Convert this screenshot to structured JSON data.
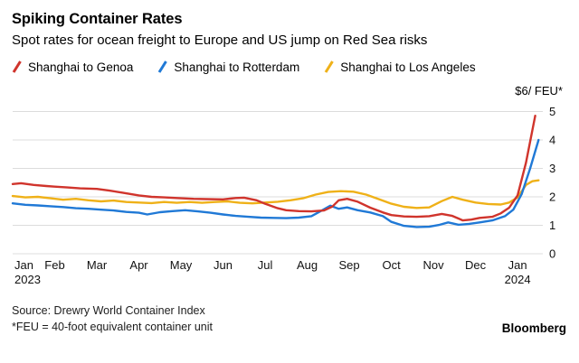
{
  "header": {
    "title": "Spiking Container Rates",
    "subtitle": "Spot rates for ocean freight to Europe and US jump on Red Sea risks"
  },
  "legend": {
    "items": [
      {
        "label": "Shanghai to Genoa",
        "color": "#d0342c"
      },
      {
        "label": "Shanghai to Rotterdam",
        "color": "#2079d6"
      },
      {
        "label": "Shanghai to Los Angeles",
        "color": "#efb118"
      }
    ]
  },
  "chart_data": {
    "type": "line",
    "unit_label": "$6/ FEU*",
    "x_axis": {
      "months": [
        "Jan",
        "Feb",
        "Mar",
        "Apr",
        "May",
        "Jun",
        "Jul",
        "Aug",
        "Sep",
        "Oct",
        "Nov",
        "Dec",
        "Jan"
      ],
      "year_start": "2023",
      "year_end": "2024",
      "range_months": [
        0,
        12.6
      ]
    },
    "y_axis": {
      "ticks": [
        0,
        1,
        2,
        3,
        4,
        5
      ],
      "range": [
        0,
        5.3
      ],
      "gridlines": true
    },
    "series": [
      {
        "name": "Shanghai to Genoa",
        "color": "#d0342c",
        "points": [
          [
            0,
            2.45
          ],
          [
            0.2,
            2.48
          ],
          [
            0.5,
            2.42
          ],
          [
            0.8,
            2.38
          ],
          [
            1.0,
            2.36
          ],
          [
            1.3,
            2.33
          ],
          [
            1.6,
            2.3
          ],
          [
            2.0,
            2.28
          ],
          [
            2.3,
            2.22
          ],
          [
            2.6,
            2.15
          ],
          [
            3.0,
            2.05
          ],
          [
            3.3,
            2.0
          ],
          [
            3.6,
            1.98
          ],
          [
            3.9,
            1.96
          ],
          [
            4.3,
            1.93
          ],
          [
            4.6,
            1.92
          ],
          [
            5.0,
            1.91
          ],
          [
            5.3,
            1.96
          ],
          [
            5.5,
            1.97
          ],
          [
            5.8,
            1.88
          ],
          [
            6.0,
            1.76
          ],
          [
            6.3,
            1.6
          ],
          [
            6.5,
            1.53
          ],
          [
            6.8,
            1.5
          ],
          [
            7.1,
            1.49
          ],
          [
            7.4,
            1.52
          ],
          [
            7.6,
            1.66
          ],
          [
            7.75,
            1.88
          ],
          [
            7.95,
            1.93
          ],
          [
            8.2,
            1.83
          ],
          [
            8.5,
            1.62
          ],
          [
            8.8,
            1.45
          ],
          [
            9.0,
            1.36
          ],
          [
            9.3,
            1.31
          ],
          [
            9.6,
            1.3
          ],
          [
            9.9,
            1.32
          ],
          [
            10.2,
            1.4
          ],
          [
            10.45,
            1.33
          ],
          [
            10.7,
            1.17
          ],
          [
            10.9,
            1.2
          ],
          [
            11.1,
            1.26
          ],
          [
            11.4,
            1.3
          ],
          [
            11.6,
            1.42
          ],
          [
            11.8,
            1.62
          ],
          [
            12.0,
            2.05
          ],
          [
            12.2,
            3.2
          ],
          [
            12.42,
            4.85
          ]
        ]
      },
      {
        "name": "Shanghai to Rotterdam",
        "color": "#2079d6",
        "points": [
          [
            0,
            1.77
          ],
          [
            0.3,
            1.72
          ],
          [
            0.6,
            1.7
          ],
          [
            0.9,
            1.67
          ],
          [
            1.2,
            1.64
          ],
          [
            1.5,
            1.6
          ],
          [
            1.8,
            1.58
          ],
          [
            2.1,
            1.55
          ],
          [
            2.4,
            1.52
          ],
          [
            2.7,
            1.47
          ],
          [
            3.0,
            1.44
          ],
          [
            3.2,
            1.38
          ],
          [
            3.5,
            1.46
          ],
          [
            3.8,
            1.5
          ],
          [
            4.1,
            1.53
          ],
          [
            4.4,
            1.49
          ],
          [
            4.7,
            1.44
          ],
          [
            5.0,
            1.38
          ],
          [
            5.3,
            1.33
          ],
          [
            5.6,
            1.3
          ],
          [
            5.9,
            1.27
          ],
          [
            6.2,
            1.26
          ],
          [
            6.5,
            1.25
          ],
          [
            6.8,
            1.27
          ],
          [
            7.1,
            1.32
          ],
          [
            7.35,
            1.52
          ],
          [
            7.55,
            1.69
          ],
          [
            7.75,
            1.58
          ],
          [
            7.95,
            1.63
          ],
          [
            8.2,
            1.53
          ],
          [
            8.5,
            1.45
          ],
          [
            8.8,
            1.32
          ],
          [
            9.0,
            1.12
          ],
          [
            9.3,
            0.98
          ],
          [
            9.6,
            0.94
          ],
          [
            9.9,
            0.95
          ],
          [
            10.15,
            1.02
          ],
          [
            10.35,
            1.1
          ],
          [
            10.6,
            1.02
          ],
          [
            10.85,
            1.05
          ],
          [
            11.1,
            1.1
          ],
          [
            11.4,
            1.17
          ],
          [
            11.7,
            1.32
          ],
          [
            11.9,
            1.55
          ],
          [
            12.1,
            2.1
          ],
          [
            12.3,
            3.0
          ],
          [
            12.5,
            4.0
          ]
        ]
      },
      {
        "name": "Shanghai to Los Angeles",
        "color": "#efb118",
        "points": [
          [
            0,
            2.03
          ],
          [
            0.3,
            1.98
          ],
          [
            0.6,
            2.0
          ],
          [
            0.9,
            1.95
          ],
          [
            1.2,
            1.9
          ],
          [
            1.5,
            1.93
          ],
          [
            1.8,
            1.88
          ],
          [
            2.1,
            1.84
          ],
          [
            2.4,
            1.87
          ],
          [
            2.7,
            1.82
          ],
          [
            3.0,
            1.8
          ],
          [
            3.3,
            1.78
          ],
          [
            3.6,
            1.82
          ],
          [
            3.9,
            1.79
          ],
          [
            4.2,
            1.82
          ],
          [
            4.5,
            1.79
          ],
          [
            4.8,
            1.82
          ],
          [
            5.1,
            1.84
          ],
          [
            5.4,
            1.79
          ],
          [
            5.7,
            1.77
          ],
          [
            6.0,
            1.8
          ],
          [
            6.3,
            1.83
          ],
          [
            6.6,
            1.88
          ],
          [
            6.9,
            1.95
          ],
          [
            7.2,
            2.08
          ],
          [
            7.5,
            2.17
          ],
          [
            7.8,
            2.2
          ],
          [
            8.1,
            2.18
          ],
          [
            8.4,
            2.08
          ],
          [
            8.7,
            1.92
          ],
          [
            9.0,
            1.76
          ],
          [
            9.3,
            1.65
          ],
          [
            9.6,
            1.61
          ],
          [
            9.9,
            1.63
          ],
          [
            10.2,
            1.85
          ],
          [
            10.45,
            2.0
          ],
          [
            10.7,
            1.9
          ],
          [
            11.0,
            1.8
          ],
          [
            11.3,
            1.75
          ],
          [
            11.6,
            1.73
          ],
          [
            11.8,
            1.8
          ],
          [
            12.0,
            1.98
          ],
          [
            12.2,
            2.42
          ],
          [
            12.35,
            2.55
          ],
          [
            12.5,
            2.58
          ]
        ]
      }
    ]
  },
  "footer": {
    "source": "Source: Drewry World Container Index",
    "note": "*FEU = 40-foot equivalent container unit",
    "brand": "Bloomberg"
  }
}
